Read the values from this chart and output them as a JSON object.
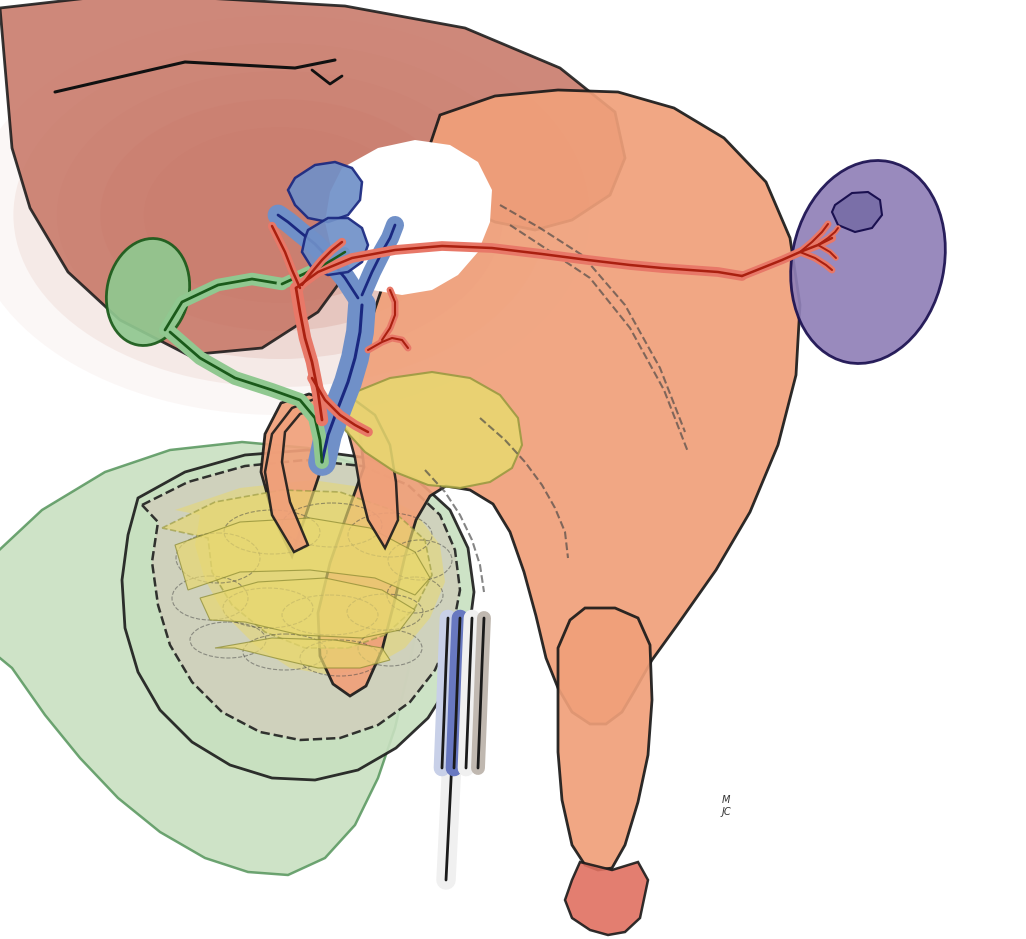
{
  "bg_color": "#ffffff",
  "liver_color": "#c87868",
  "stomach_color": "#f0a07a",
  "gallbladder_color": "#90c890",
  "bile_duct_color": "#90c890",
  "portal_vein_color": "#7090c8",
  "artery_color": "#e87868",
  "spleen_color": "#9080b8",
  "hand_color": "#c8e0c0",
  "pancreas_gray": "#d0d0bc",
  "pancreas_yellow": "#e8d870",
  "figsize": [
    10.26,
    9.39
  ],
  "dpi": 100
}
